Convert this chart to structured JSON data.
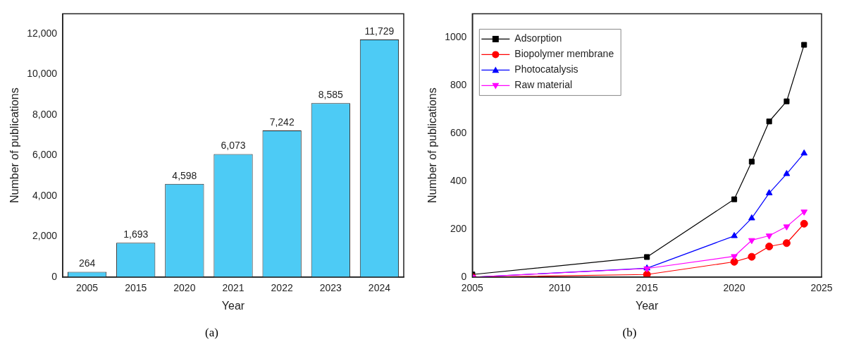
{
  "chart_data": [
    {
      "type": "bar",
      "xlabel": "Year",
      "ylabel": "Number of publications",
      "annotations": [
        "(a)"
      ],
      "categories": [
        "2005",
        "2015",
        "2020",
        "2021",
        "2022",
        "2023",
        "2024"
      ],
      "values": [
        264,
        1693,
        4598,
        6073,
        7242,
        8585,
        11729
      ],
      "value_labels": [
        "264",
        "1,693",
        "4,598",
        "6,073",
        "7,242",
        "8,585",
        "11,729"
      ],
      "color": "#4dcbf5",
      "ylim": [
        0,
        13000
      ],
      "yticks": [
        0,
        {
          "value": 2000,
          "label": "2,000"
        },
        {
          "value": 4000,
          "label": "4,000"
        },
        {
          "value": 6000,
          "label": "6,000"
        },
        {
          "value": 8000,
          "label": "8,000"
        },
        {
          "value": 10000,
          "label": "10,000"
        },
        {
          "value": 12000,
          "label": "12,000"
        }
      ]
    },
    {
      "type": "line",
      "xlabel": "Year",
      "ylabel": "Number of publications",
      "annotations": [
        "(b)"
      ],
      "legend": "top left",
      "x": [
        2005,
        2015,
        2020,
        2021,
        2022,
        2023,
        2024
      ],
      "series": [
        {
          "name": "Adsorption",
          "color": "#000000",
          "marker": "square",
          "values": [
            11,
            84,
            325,
            482,
            650,
            734,
            970
          ]
        },
        {
          "name": "Biopolymer membrane",
          "color": "#ff0000",
          "marker": "circle",
          "values": [
            0,
            11,
            64,
            85,
            128,
            142,
            223
          ]
        },
        {
          "name": "Photocatalysis",
          "color": "#0000ff",
          "marker": "triangle",
          "values": [
            0,
            37,
            172,
            246,
            351,
            431,
            517
          ]
        },
        {
          "name": "Raw material",
          "color": "#ff00ff",
          "marker": "triangle-down",
          "values": [
            0,
            36,
            87,
            154,
            173,
            211,
            273
          ]
        }
      ],
      "xlim": [
        2005,
        2025
      ],
      "xticks": [
        2005,
        2010,
        2015,
        2020,
        2025
      ],
      "ylim": [
        0,
        1100
      ],
      "yticks": [
        0,
        200,
        400,
        600,
        800,
        1000
      ]
    }
  ]
}
